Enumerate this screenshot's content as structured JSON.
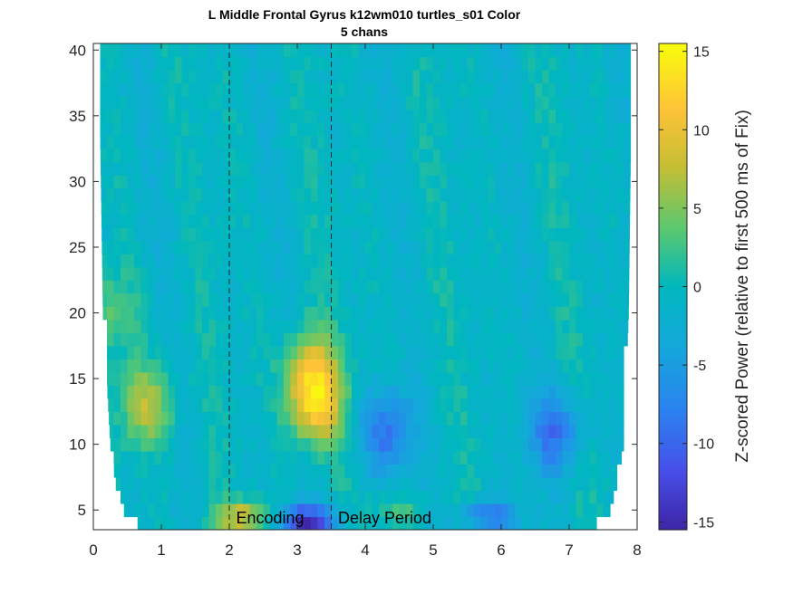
{
  "chart_data": {
    "type": "heatmap",
    "title": "L Middle Frontal Gyrus k12wm010 turtles_s01 Color",
    "subtitle": "5 chans",
    "xlim": [
      0,
      8
    ],
    "ylim": [
      3.5,
      40.5
    ],
    "x_ticks": [
      "0",
      "1",
      "2",
      "3",
      "4",
      "5",
      "6",
      "7",
      "8"
    ],
    "y_ticks": [
      "5",
      "10",
      "15",
      "20",
      "25",
      "30",
      "35",
      "40"
    ],
    "colorbar": {
      "label": "Z-scored Power (relative to first 500 ms of Fix)",
      "range": [
        -15.5,
        15.5
      ],
      "ticks": [
        "15",
        "10",
        "5",
        "0",
        "-5",
        "-10",
        "-15"
      ],
      "colormap": "parula"
    },
    "markers": [
      {
        "x": 2,
        "style": "dashed"
      },
      {
        "x": 3.5,
        "style": "dashed"
      }
    ],
    "annotations": [
      {
        "text": "Encoding",
        "x": 2.1,
        "y": 4.4
      },
      {
        "text": "Delay Period",
        "x": 3.6,
        "y": 4.4
      }
    ],
    "frequency_range": [
      4,
      40
    ],
    "time_range": [
      0,
      8
    ],
    "cone_of_influence": [
      {
        "freq": 4,
        "t_start": 0.65,
        "t_end": 7.4
      },
      {
        "freq": 5,
        "t_start": 0.45,
        "t_end": 7.6
      },
      {
        "freq": 7,
        "t_start": 0.33,
        "t_end": 7.7
      },
      {
        "freq": 10,
        "t_start": 0.25,
        "t_end": 7.8
      },
      {
        "freq": 20,
        "t_start": 0.14,
        "t_end": 7.87
      },
      {
        "freq": 40,
        "t_start": 0.08,
        "t_end": 7.92
      }
    ],
    "features": [
      {
        "t": 0.8,
        "freq": 13,
        "z": 8
      },
      {
        "t": 3.25,
        "freq": 13,
        "z": 12
      },
      {
        "t": 3.2,
        "freq": 16,
        "z": 8
      },
      {
        "t": 2.2,
        "freq": 4.5,
        "z": 9
      },
      {
        "t": 3.15,
        "freq": 4.2,
        "z": -14
      },
      {
        "t": 5.8,
        "freq": 4.6,
        "z": -8
      },
      {
        "t": 4.3,
        "freq": 11,
        "z": -8
      },
      {
        "t": 6.8,
        "freq": 11,
        "z": -8
      },
      {
        "t": 0.3,
        "freq": 20,
        "z": 4
      },
      {
        "t": 4.5,
        "freq": 5,
        "z": 4
      }
    ]
  }
}
